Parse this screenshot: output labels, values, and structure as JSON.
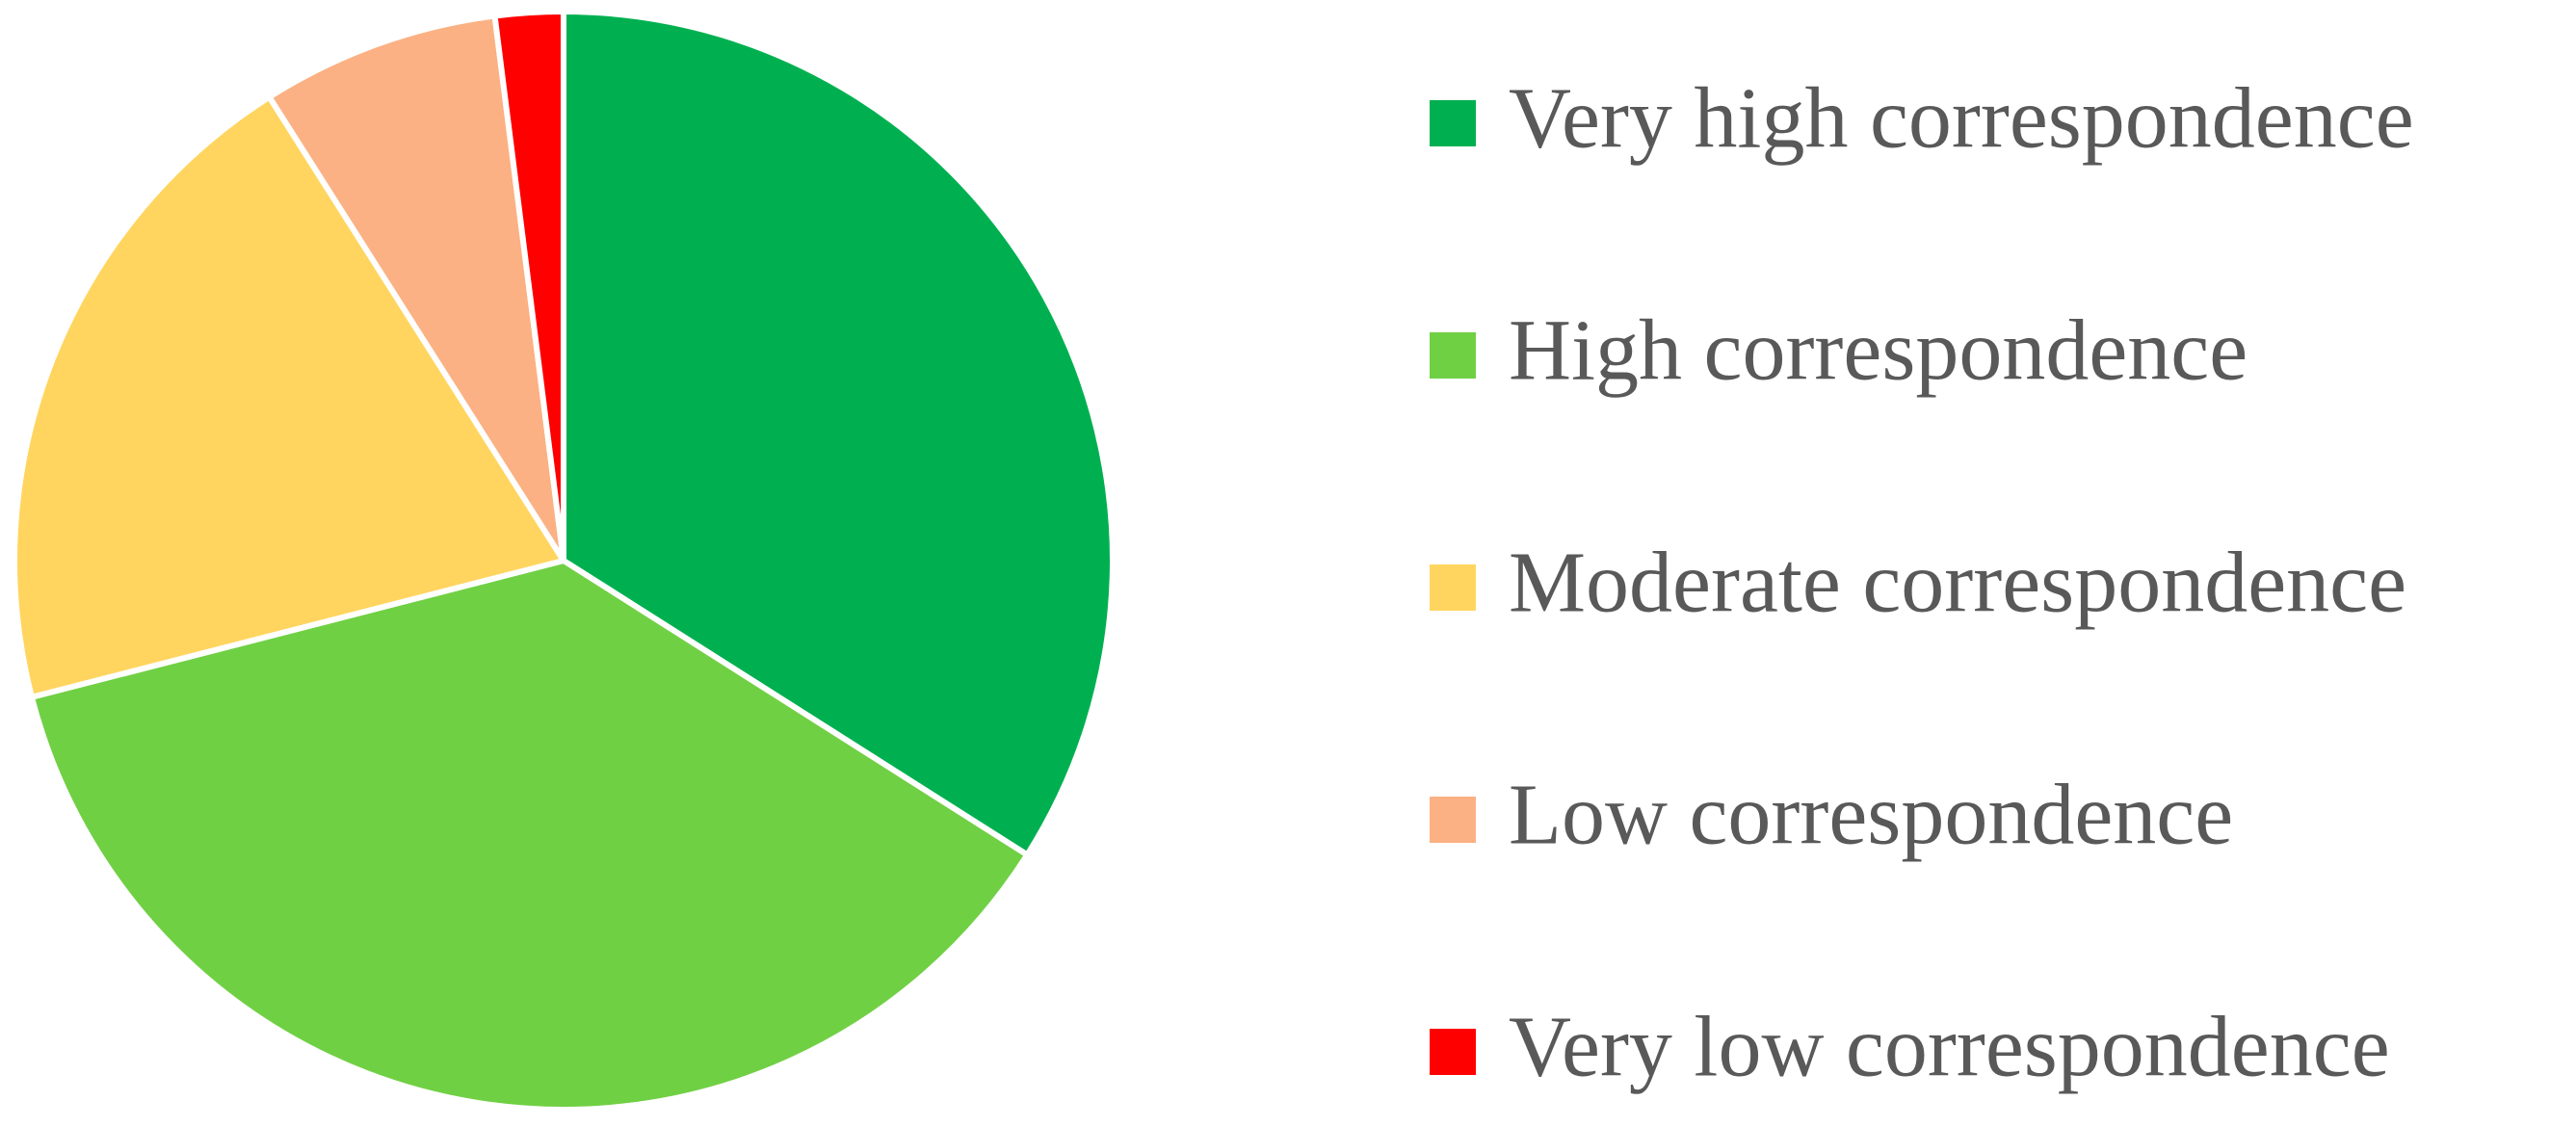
{
  "chart_data": {
    "type": "pie",
    "categories": [
      "Very high correspondence",
      "High correspondence",
      "Moderate correspondence",
      "Low correspondence",
      "Very low correspondence"
    ],
    "values": [
      34,
      37,
      20,
      7,
      2
    ],
    "colors": [
      "#00b050",
      "#70d044",
      "#ffd55f",
      "#fbb183",
      "#ff0000"
    ],
    "legend": "right"
  }
}
